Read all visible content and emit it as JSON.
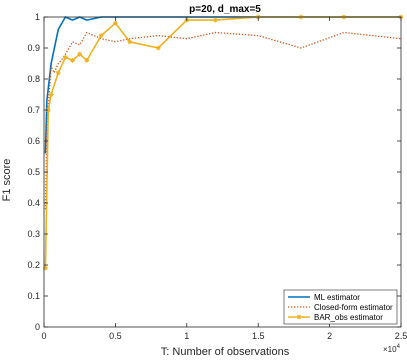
{
  "chart_data": {
    "type": "line",
    "title": "p=20, d_max=5",
    "xlabel": "T: Number of observations",
    "ylabel": "F1 score",
    "x_exponent_label": "×10",
    "x_exponent_power": "4",
    "xlim": [
      0,
      25000
    ],
    "ylim": [
      0,
      1
    ],
    "x_ticks": [
      0,
      5000,
      10000,
      15000,
      20000,
      25000
    ],
    "x_tick_labels": [
      "0",
      "0.5",
      "1",
      "1.5",
      "2",
      "2.5"
    ],
    "y_ticks": [
      0,
      0.1,
      0.2,
      0.3,
      0.4,
      0.5,
      0.6,
      0.7,
      0.8,
      0.9,
      1
    ],
    "y_tick_labels": [
      "0",
      "0.1",
      "0.2",
      "0.3",
      "0.4",
      "0.5",
      "0.6",
      "0.7",
      "0.8",
      "0.9",
      "1"
    ],
    "grid": false,
    "legend_position": "bottom-right",
    "series": [
      {
        "name": "ML estimator",
        "color": "#0072BD",
        "style": "solid",
        "marker": "none",
        "x": [
          100,
          200,
          500,
          1000,
          1500,
          2000,
          2500,
          3000,
          4000,
          5000,
          6000,
          8000,
          10000,
          12000,
          15000,
          18000,
          21000,
          25000
        ],
        "y": [
          0.56,
          0.73,
          0.85,
          0.96,
          1.0,
          0.99,
          1.0,
          0.99,
          1.0,
          1.0,
          1.0,
          1.0,
          1.0,
          1.0,
          1.0,
          1.0,
          1.0,
          1.0
        ]
      },
      {
        "name": "Closed-form estimator",
        "color": "#D95319",
        "style": "dotted",
        "marker": "none",
        "x": [
          100,
          200,
          300,
          500,
          700,
          1000,
          1200,
          1500,
          2000,
          2500,
          3000,
          4000,
          5000,
          6000,
          8000,
          10000,
          12000,
          15000,
          18000,
          21000,
          25000
        ],
        "y": [
          0.38,
          0.63,
          0.71,
          0.84,
          0.82,
          0.85,
          0.86,
          0.88,
          0.92,
          0.91,
          0.95,
          0.93,
          0.92,
          0.93,
          0.94,
          0.93,
          0.95,
          0.94,
          0.9,
          0.95,
          0.93
        ]
      },
      {
        "name": "BAR_obs estimator",
        "color": "#EDB120",
        "style": "solid",
        "marker": "asterisk",
        "x": [
          100,
          300,
          500,
          1000,
          1500,
          2000,
          2500,
          3000,
          4000,
          5000,
          6000,
          8000,
          10000,
          12000,
          15000,
          18000,
          21000,
          25000
        ],
        "y": [
          0.19,
          0.7,
          0.75,
          0.82,
          0.87,
          0.86,
          0.88,
          0.86,
          0.94,
          0.98,
          0.92,
          0.9,
          0.99,
          0.99,
          1.0,
          1.0,
          1.0,
          1.0
        ]
      }
    ]
  }
}
